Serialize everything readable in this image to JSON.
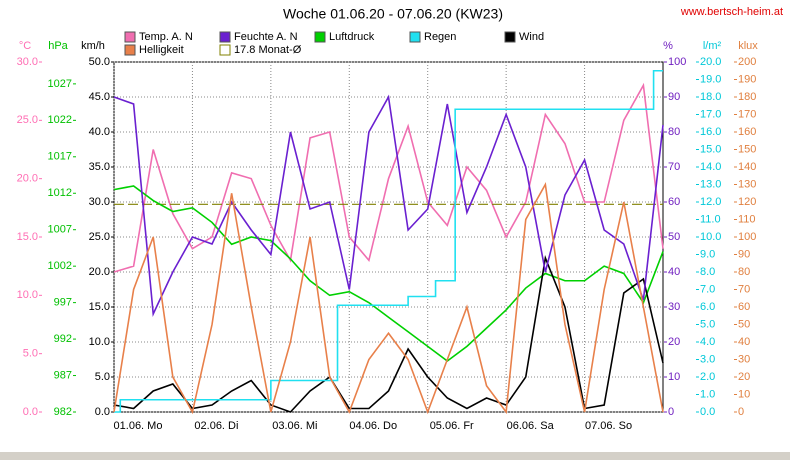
{
  "chart_data": {
    "type": "line",
    "title": "Woche 01.06.20 - 07.06.20 (KW23)",
    "source": "www.bertsch-heim.at",
    "xlim": [
      0,
      7
    ],
    "xticks": [
      {
        "value": 0,
        "label": "01.06. Mo"
      },
      {
        "value": 1,
        "label": "02.06. Di"
      },
      {
        "value": 2,
        "label": "03.06. Mi"
      },
      {
        "value": 3,
        "label": "04.06. Do"
      },
      {
        "value": 4,
        "label": "05.06. Fr"
      },
      {
        "value": 5,
        "label": "06.06. Sa"
      },
      {
        "value": 6,
        "label": "07.06. So"
      }
    ],
    "x": [
      0,
      0.25,
      0.5,
      0.75,
      1,
      1.25,
      1.5,
      1.75,
      2,
      2.25,
      2.5,
      2.75,
      3,
      3.25,
      3.5,
      3.75,
      4,
      4.25,
      4.5,
      4.75,
      5,
      5.25,
      5.5,
      5.75,
      6,
      6.25,
      6.5,
      6.75,
      7
    ],
    "xgrid": true,
    "axes": [
      {
        "unit": "°C",
        "color": "#ff6eb4",
        "side": "left",
        "lim": [
          0,
          30
        ],
        "ticks": [
          {
            "value": 0,
            "label": "0.0"
          },
          {
            "value": 5,
            "label": "5.0"
          },
          {
            "value": 10,
            "label": "10.0"
          },
          {
            "value": 15,
            "label": "15.0"
          },
          {
            "value": 20,
            "label": "20.0"
          },
          {
            "value": 25,
            "label": "25.0"
          },
          {
            "value": 30,
            "label": "30.0"
          }
        ],
        "series": [
          {
            "name": "Temp. A. N",
            "color": "#f06eb0",
            "values": [
              12,
              12.5,
              22.5,
              17,
              14,
              15,
              20.5,
              20,
              16,
              13,
              23.5,
              24,
              15,
              13,
              20,
              24.5,
              18,
              16,
              21,
              19,
              15,
              18,
              25.5,
              23,
              18,
              18,
              25,
              28,
              14
            ]
          },
          {
            "name": "17.8 Monat-Ø",
            "color": "#808000",
            "style": "dashed",
            "values": [
              17.8
            ]
          }
        ]
      },
      {
        "unit": "hPa",
        "color": "#00c000",
        "side": "left",
        "lim": [
          982,
          1030
        ],
        "ticks": [
          982,
          987,
          992,
          997,
          1002,
          1007,
          1012,
          1017,
          1022,
          1027
        ],
        "series": [
          {
            "name": "Luftdruck",
            "color": "#00d000",
            "values": [
              1012.5,
              1013,
              1011,
              1009.5,
              1010,
              1008,
              1005,
              1006,
              1005.5,
              1003,
              1000,
              998,
              998.5,
              997,
              995,
              993,
              991,
              989,
              991,
              993.5,
              996,
              999,
              1001,
              1000,
              1000,
              1002,
              1001,
              997,
              1004
            ]
          }
        ]
      },
      {
        "unit": "km/h",
        "color": "#000000",
        "side": "left",
        "lim": [
          0,
          50
        ],
        "grid": true,
        "ticks": [
          {
            "value": 0,
            "label": "0.0"
          },
          {
            "value": 5,
            "label": "5.0"
          },
          {
            "value": 10,
            "label": "10.0"
          },
          {
            "value": 15,
            "label": "15.0"
          },
          {
            "value": 20,
            "label": "20.0"
          },
          {
            "value": 25,
            "label": "25.0"
          },
          {
            "value": 30,
            "label": "30.0"
          },
          {
            "value": 35,
            "label": "35.0"
          },
          {
            "value": 40,
            "label": "40.0"
          },
          {
            "value": 45,
            "label": "45.0"
          },
          {
            "value": 50,
            "label": "50.0"
          }
        ],
        "series": [
          {
            "name": "Wind",
            "color": "#000000",
            "values": [
              1,
              0.5,
              3,
              4,
              0.5,
              1,
              3,
              4.5,
              1,
              0,
              3,
              5,
              0.5,
              0.5,
              3,
              9,
              5,
              2,
              0.5,
              2,
              1,
              5,
              22,
              15,
              0.5,
              1,
              17,
              19,
              7
            ]
          }
        ]
      },
      {
        "unit": "%",
        "color": "#7020c0",
        "side": "right",
        "lim": [
          0,
          100
        ],
        "ticks": [
          0,
          10,
          20,
          30,
          40,
          50,
          60,
          70,
          80,
          90,
          100
        ],
        "series": [
          {
            "name": "Feuchte A. N",
            "color": "#6a20d0",
            "values": [
              90,
              88,
              28,
              40,
              50,
              48,
              60,
              52,
              45,
              80,
              58,
              60,
              35,
              80,
              90,
              52,
              58,
              88,
              57,
              70,
              85,
              70,
              40,
              62,
              72,
              52,
              48,
              32,
              82
            ]
          }
        ]
      },
      {
        "unit": "l/m²",
        "color": "#00c8d8",
        "side": "right",
        "lim": [
          0,
          20
        ],
        "ticks": [
          {
            "value": 0,
            "label": "0.0"
          },
          {
            "value": 1,
            "label": "1.0"
          },
          {
            "value": 2,
            "label": "2.0"
          },
          {
            "value": 3,
            "label": "3.0"
          },
          {
            "value": 4,
            "label": "4.0"
          },
          {
            "value": 5,
            "label": "5.0"
          },
          {
            "value": 6,
            "label": "6.0"
          },
          {
            "value": 7,
            "label": "7.0"
          },
          {
            "value": 8,
            "label": "8.0"
          },
          {
            "value": 9,
            "label": "9.0"
          },
          {
            "value": 10,
            "label": "10.0"
          },
          {
            "value": 11,
            "label": "11.0"
          },
          {
            "value": 12,
            "label": "12.0"
          },
          {
            "value": 13,
            "label": "13.0"
          },
          {
            "value": 14,
            "label": "14.0"
          },
          {
            "value": 15,
            "label": "15.0"
          },
          {
            "value": 16,
            "label": "16.0"
          },
          {
            "value": 17,
            "label": "17.0"
          },
          {
            "value": 18,
            "label": "18.0"
          },
          {
            "value": 19,
            "label": "19.0"
          },
          {
            "value": 20,
            "label": "20.0"
          }
        ],
        "series": [
          {
            "name": "Regen",
            "color": "#20e0f0",
            "step": true,
            "x": [
              0,
              0.08,
              2,
              2.85,
              3.75,
              4.1,
              4.35,
              6.88
            ],
            "values": [
              0,
              0.7,
              1.8,
              6.1,
              6.6,
              7.5,
              17.3,
              19.5
            ]
          }
        ]
      },
      {
        "unit": "klux",
        "color": "#e08040",
        "side": "right",
        "lim": [
          0,
          200
        ],
        "ticks": [
          0,
          10,
          20,
          30,
          40,
          50,
          60,
          70,
          80,
          90,
          100,
          110,
          120,
          130,
          140,
          150,
          160,
          170,
          180,
          190,
          200
        ],
        "series": [
          {
            "name": "Helligkeit",
            "color": "#e8804a",
            "values": [
              0,
              70,
              100,
              20,
              0,
              50,
              125,
              60,
              0,
              40,
              100,
              20,
              0,
              30,
              45,
              30,
              0,
              30,
              60,
              15,
              0,
              110,
              130,
              50,
              0,
              70,
              120,
              60,
              0
            ]
          }
        ]
      }
    ]
  }
}
